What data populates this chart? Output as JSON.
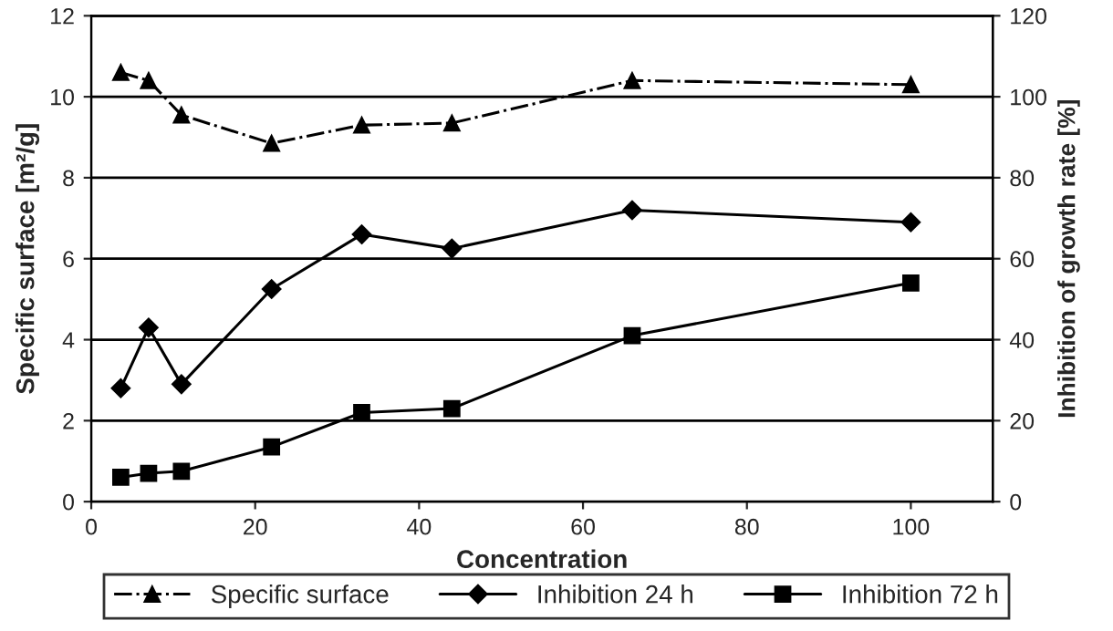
{
  "chart_data": {
    "type": "line",
    "xlabel": "Concentration",
    "ylabel": "Specific surface [m²/g]",
    "y2label": "Inhibition of growth rate [%]",
    "xlim": [
      0,
      110
    ],
    "xticks": [
      0,
      20,
      40,
      60,
      80,
      100
    ],
    "ylim": [
      0,
      12
    ],
    "yticks": [
      0,
      2,
      4,
      6,
      8,
      10,
      12
    ],
    "y2lim": [
      0,
      120
    ],
    "y2ticks": [
      0,
      20,
      40,
      60,
      80,
      100,
      120
    ],
    "grid": "y",
    "legend": "bottom",
    "x": [
      3.6,
      7,
      11,
      22,
      33,
      44,
      66,
      100
    ],
    "series": [
      {
        "name": "Specific surface",
        "color": "#000000",
        "marker": "triangle",
        "line_style": "dashdot",
        "values": [
          10.6,
          10.4,
          9.55,
          8.85,
          9.3,
          9.35,
          10.4,
          10.3
        ]
      },
      {
        "name": "Inhibition 24 h",
        "color": "#000000",
        "marker": "diamond",
        "line_style": "solid",
        "axis": "y2",
        "values": [
          28,
          43,
          29,
          52.5,
          66,
          62.5,
          72,
          69
        ]
      },
      {
        "name": "Inhibition 72 h",
        "color": "#000000",
        "marker": "square",
        "line_style": "solid",
        "axis": "y2",
        "values": [
          6,
          7,
          7.5,
          13.5,
          22,
          23,
          41,
          54
        ]
      }
    ]
  }
}
